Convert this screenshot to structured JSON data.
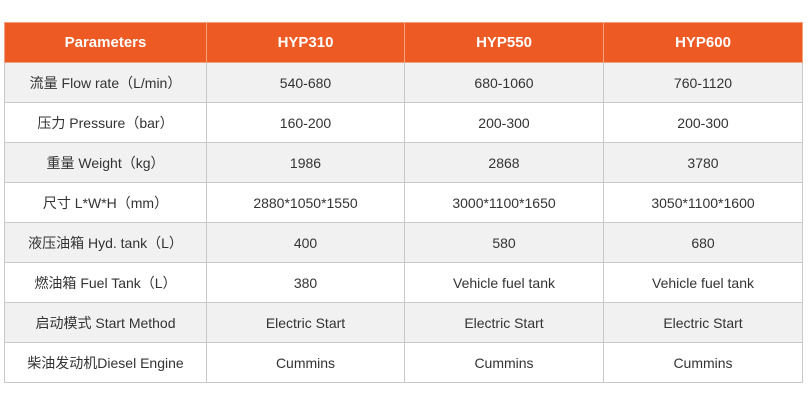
{
  "table": {
    "headers": [
      "Parameters",
      "HYP310",
      "HYP550",
      "HYP600"
    ],
    "rows": [
      [
        "流量 Flow rate（L/min）",
        "540-680",
        "680-1060",
        "760-1120"
      ],
      [
        "压力 Pressure（bar）",
        "160-200",
        "200-300",
        "200-300"
      ],
      [
        "重量 Weight（kg）",
        "1986",
        "2868",
        "3780"
      ],
      [
        "尺寸 L*W*H（mm）",
        "2880*1050*1550",
        "3000*1100*1650",
        "3050*1100*1600"
      ],
      [
        "液压油箱 Hyd. tank（L）",
        "400",
        "580",
        "680"
      ],
      [
        "燃油箱 Fuel Tank（L）",
        "380",
        "Vehicle fuel tank",
        "Vehicle fuel tank"
      ],
      [
        "启动模式 Start Method",
        "Electric Start",
        "Electric Start",
        "Electric Start"
      ],
      [
        "柴油发动机Diesel  Engine",
        "Cummins",
        "Cummins",
        "Cummins"
      ]
    ]
  },
  "colors": {
    "header_bg": "#ee5a24",
    "header_text": "#ffffff",
    "row_alt_bg": "#f1f1f1",
    "border": "#c9c9c9"
  }
}
